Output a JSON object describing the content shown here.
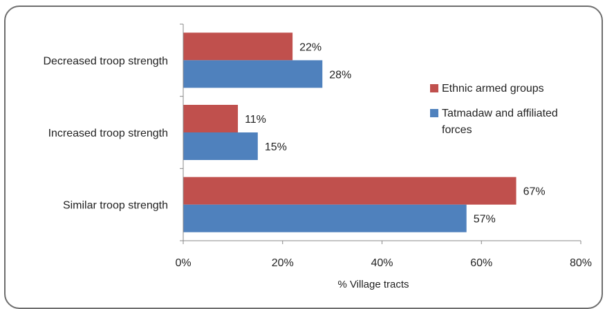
{
  "chart_data": {
    "type": "bar",
    "orientation": "horizontal",
    "categories": [
      "Decreased troop strength",
      "Increased troop strength",
      "Similar troop strength"
    ],
    "series": [
      {
        "name": "Ethnic armed groups",
        "color": "#c0504d",
        "values": [
          22,
          11,
          67
        ],
        "labels": [
          "22%",
          "11%",
          "67%"
        ]
      },
      {
        "name": "Tatmadaw and affiliated forces",
        "color": "#4f81bd",
        "values": [
          28,
          15,
          57
        ],
        "labels": [
          "28%",
          "15%",
          "57%"
        ]
      }
    ],
    "xlim": [
      0,
      80
    ],
    "x_ticks": [
      0,
      20,
      40,
      60,
      80
    ],
    "x_tick_labels": [
      "0%",
      "20%",
      "40%",
      "60%",
      "80%"
    ],
    "xlabel": "% Village tracts",
    "ylabel": "",
    "title": "",
    "grid": false,
    "legend_position": "right",
    "legend_lines": [
      [
        "Ethnic armed groups"
      ],
      [
        "Tatmadaw and affiliated",
        "forces"
      ]
    ]
  }
}
